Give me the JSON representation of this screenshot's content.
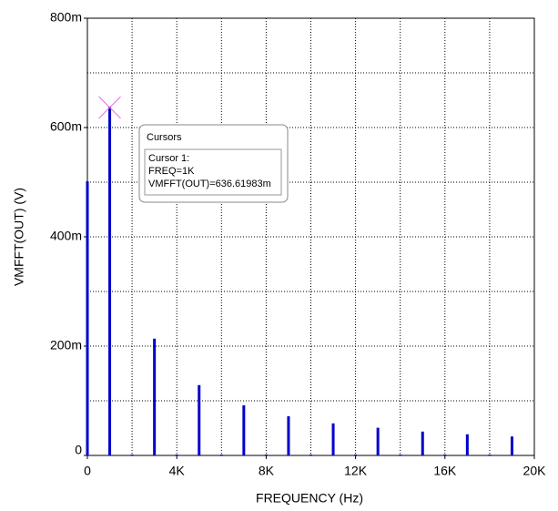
{
  "chart_data": {
    "type": "bar",
    "xlabel": "FREQUENCY  (Hz)",
    "ylabel": "VMFFT(OUT)  (V)",
    "x": [
      0,
      1000,
      2000,
      3000,
      4000,
      5000,
      6000,
      7000,
      8000,
      9000,
      10000,
      11000,
      12000,
      13000,
      14000,
      15000,
      16000,
      17000,
      18000,
      19000
    ],
    "values": [
      0.5,
      0.63661983,
      0,
      0.212,
      0,
      0.127,
      0,
      0.09,
      0,
      0.07,
      0,
      0.057,
      0,
      0.049,
      0,
      0.042,
      0,
      0.037,
      0,
      0.033
    ],
    "color": "#0000cc",
    "xlim": [
      0,
      20000
    ],
    "ylim": [
      0,
      0.8
    ],
    "xticks": [
      0,
      {
        "value": 4000,
        "label": "4K"
      },
      {
        "value": 8000,
        "label": "8K"
      },
      {
        "value": 12000,
        "label": "12K"
      },
      {
        "value": 16000,
        "label": "16K"
      },
      {
        "value": 20000,
        "label": "20K"
      }
    ],
    "yticks": [
      0,
      {
        "value": 0.2,
        "label": "200m"
      },
      {
        "value": 0.4,
        "label": "400m"
      },
      {
        "value": 0.6,
        "label": "600m"
      },
      {
        "value": 0.8,
        "label": "800m"
      }
    ],
    "xgrid": [
      2000,
      4000,
      6000,
      8000,
      10000,
      12000,
      14000,
      16000,
      18000
    ],
    "ygrid": [
      0.1,
      0.2,
      0.3,
      0.4,
      0.5,
      0.6,
      0.7
    ],
    "grid": true,
    "cursor": {
      "title": "Cursors",
      "lines": [
        "Cursor 1:",
        "FREQ=1K",
        "VMFFT(OUT)=636.61983m"
      ],
      "x": 1000,
      "y": 0.63661983
    }
  }
}
